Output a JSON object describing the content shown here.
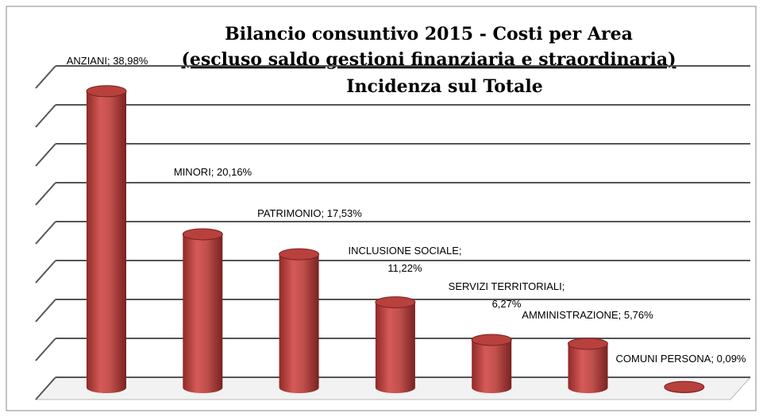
{
  "chart_data": {
    "type": "bar",
    "title": [
      "Bilancio consuntivo 2015 - Costi per Area",
      "(escluso saldo gestioni finanziaria e straordinaria)",
      "Incidenza sul  Totale"
    ],
    "values": [
      38.98,
      20.16,
      17.53,
      11.22,
      6.27,
      5.76,
      0.09
    ],
    "value_labels": [
      "ANZIANI; 38,98%",
      "MINORI; 20,16%",
      "PATRIMONIO; 17,53%",
      "INCLUSIONE SOCIALE; 11,22%",
      "SERVIZI TERRITORIALI; 6,27%",
      "AMMINISTRAZIONE; 5,76%",
      "COMUNI PERSONA; 0,09%"
    ],
    "color": "#c0504d",
    "ylim": [
      0,
      40
    ],
    "yticks": [
      0,
      5,
      10,
      15,
      20,
      25,
      30,
      35,
      40
    ],
    "grid": true
  }
}
